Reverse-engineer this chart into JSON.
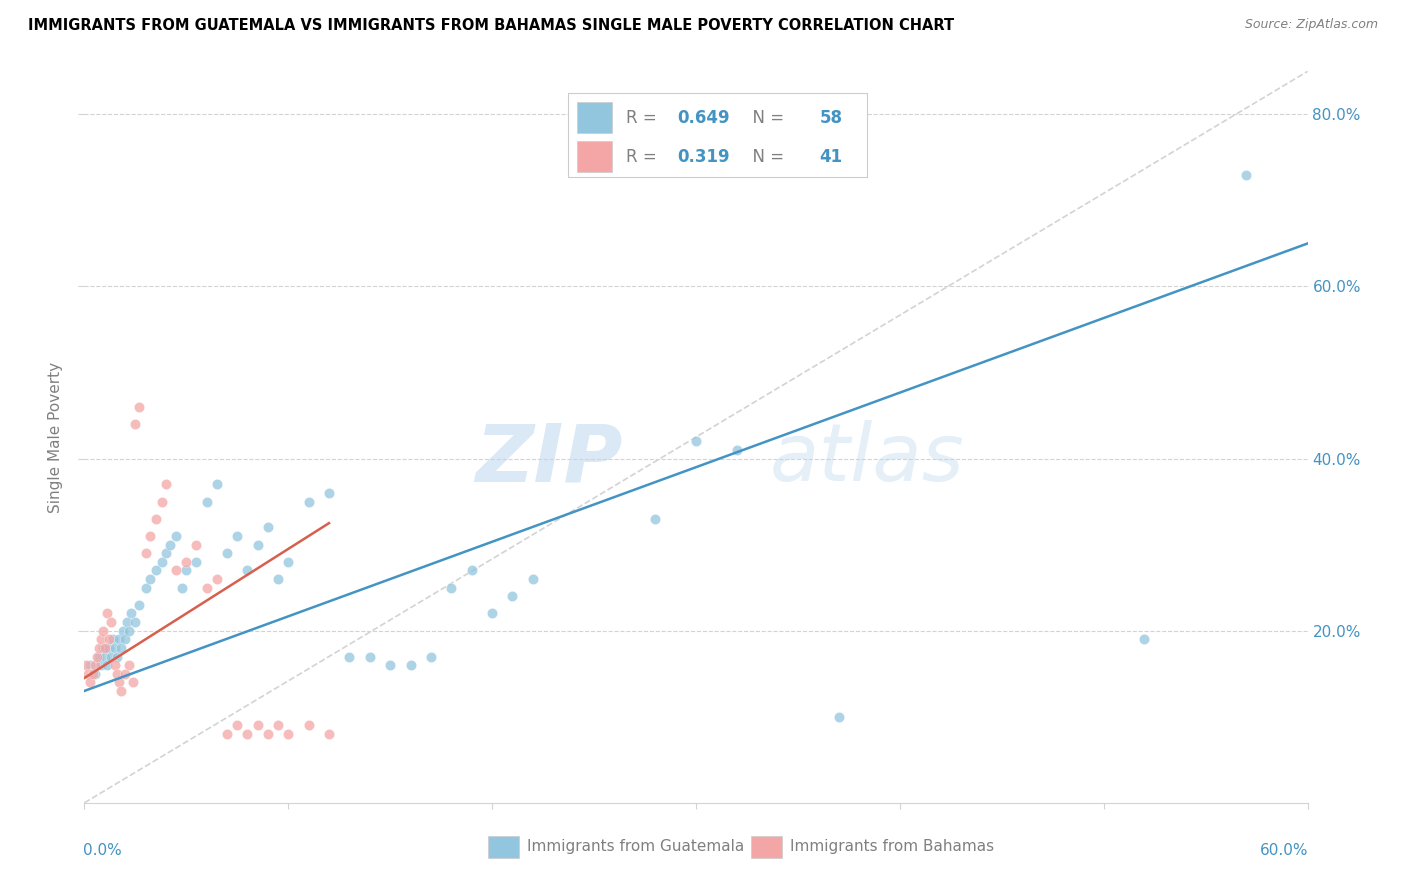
{
  "title": "IMMIGRANTS FROM GUATEMALA VS IMMIGRANTS FROM BAHAMAS SINGLE MALE POVERTY CORRELATION CHART",
  "source": "Source: ZipAtlas.com",
  "ylabel": "Single Male Poverty",
  "blue_color": "#92C5DE",
  "pink_color": "#F4A6A6",
  "line_blue": "#4393C3",
  "line_pink": "#D6604D",
  "blue_R": "0.649",
  "blue_N": "58",
  "pink_R": "0.319",
  "pink_N": "41",
  "label_blue": "Immigrants from Guatemala",
  "label_pink": "Immigrants from Bahamas",
  "text_blue": "#4393C3",
  "text_pink": "#D6604D",
  "blue_x": [
    0.003,
    0.005,
    0.007,
    0.008,
    0.009,
    0.01,
    0.011,
    0.012,
    0.013,
    0.014,
    0.015,
    0.016,
    0.017,
    0.018,
    0.019,
    0.02,
    0.021,
    0.022,
    0.023,
    0.025,
    0.027,
    0.03,
    0.032,
    0.035,
    0.038,
    0.04,
    0.042,
    0.045,
    0.048,
    0.05,
    0.055,
    0.06,
    0.065,
    0.07,
    0.075,
    0.08,
    0.085,
    0.09,
    0.095,
    0.1,
    0.11,
    0.12,
    0.13,
    0.14,
    0.15,
    0.16,
    0.17,
    0.18,
    0.19,
    0.2,
    0.21,
    0.22,
    0.28,
    0.3,
    0.32,
    0.37,
    0.52,
    0.57
  ],
  "blue_y": [
    0.16,
    0.15,
    0.17,
    0.16,
    0.18,
    0.17,
    0.16,
    0.18,
    0.17,
    0.19,
    0.18,
    0.17,
    0.19,
    0.18,
    0.2,
    0.19,
    0.21,
    0.2,
    0.22,
    0.21,
    0.23,
    0.25,
    0.26,
    0.27,
    0.28,
    0.29,
    0.3,
    0.31,
    0.25,
    0.27,
    0.28,
    0.35,
    0.37,
    0.29,
    0.31,
    0.27,
    0.3,
    0.32,
    0.26,
    0.28,
    0.35,
    0.36,
    0.17,
    0.17,
    0.16,
    0.16,
    0.17,
    0.25,
    0.27,
    0.22,
    0.24,
    0.26,
    0.33,
    0.42,
    0.41,
    0.1,
    0.19,
    0.73
  ],
  "pink_x": [
    0.001,
    0.002,
    0.003,
    0.004,
    0.005,
    0.006,
    0.007,
    0.008,
    0.009,
    0.01,
    0.011,
    0.012,
    0.013,
    0.015,
    0.016,
    0.017,
    0.018,
    0.02,
    0.022,
    0.024,
    0.025,
    0.027,
    0.03,
    0.032,
    0.035,
    0.038,
    0.04,
    0.045,
    0.05,
    0.055,
    0.06,
    0.065,
    0.07,
    0.075,
    0.08,
    0.085,
    0.09,
    0.095,
    0.1,
    0.11,
    0.12
  ],
  "pink_y": [
    0.16,
    0.15,
    0.14,
    0.15,
    0.16,
    0.17,
    0.18,
    0.19,
    0.2,
    0.18,
    0.22,
    0.19,
    0.21,
    0.16,
    0.15,
    0.14,
    0.13,
    0.15,
    0.16,
    0.14,
    0.44,
    0.46,
    0.29,
    0.31,
    0.33,
    0.35,
    0.37,
    0.27,
    0.28,
    0.3,
    0.25,
    0.26,
    0.08,
    0.09,
    0.08,
    0.09,
    0.08,
    0.09,
    0.08,
    0.09,
    0.08
  ],
  "xlim": [
    0.0,
    0.6
  ],
  "ylim": [
    0.0,
    0.85
  ],
  "blue_line_x": [
    0.0,
    0.6
  ],
  "blue_line_y": [
    0.13,
    0.65
  ],
  "pink_line_x": [
    0.0,
    0.12
  ],
  "pink_line_y": [
    0.145,
    0.325
  ],
  "diag_line_x": [
    0.0,
    0.6
  ],
  "diag_line_y": [
    0.0,
    0.85
  ],
  "xtick_positions": [
    0.0,
    0.1,
    0.2,
    0.3,
    0.4,
    0.5,
    0.6
  ],
  "ytick_positions": [
    0.2,
    0.4,
    0.6,
    0.8
  ],
  "ytick_labels": [
    "20.0%",
    "40.0%",
    "60.0%",
    "80.0%"
  ]
}
